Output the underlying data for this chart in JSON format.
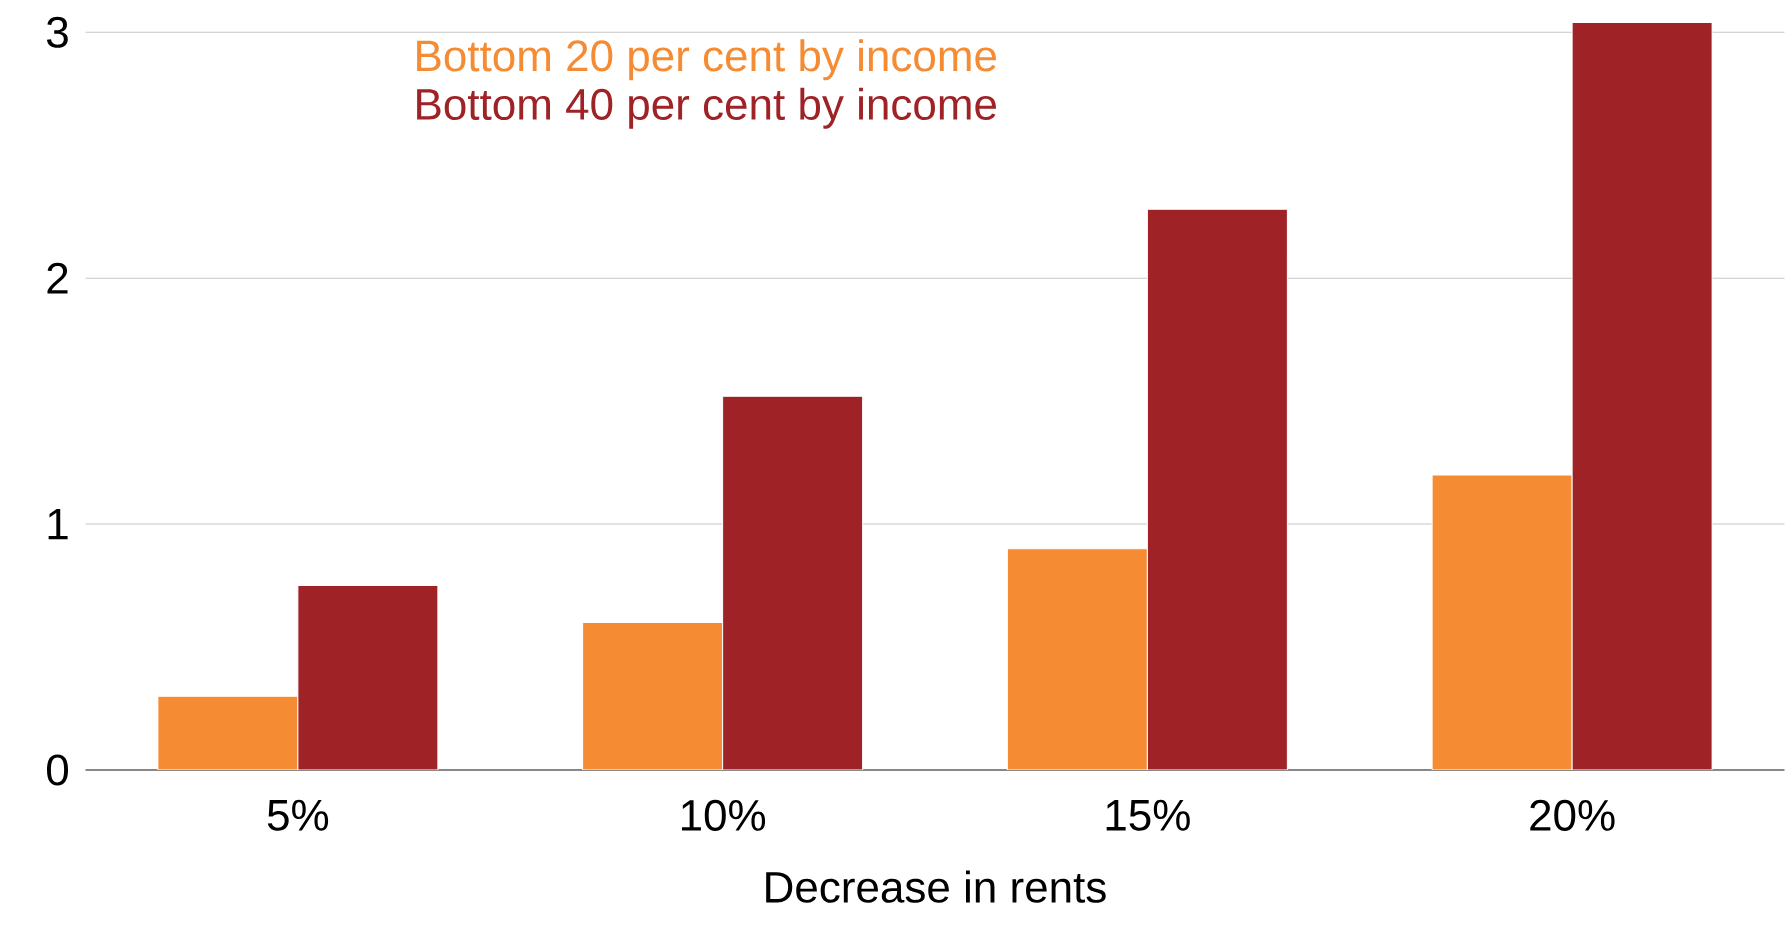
{
  "chart_data": {
    "type": "bar",
    "xlabel": "Decrease in rents",
    "categories": [
      "5%",
      "10%",
      "15%",
      "20%"
    ],
    "series": [
      {
        "name": "Bottom 20 per cent by income",
        "color": "#f58b33",
        "values": [
          0.3,
          0.6,
          0.9,
          1.2
        ]
      },
      {
        "name": "Bottom 40 per cent by income",
        "color": "#9e2226",
        "values": [
          0.75,
          1.52,
          2.28,
          3.04
        ]
      }
    ],
    "ylim": [
      0,
      3.05
    ],
    "yticks": [
      0,
      1,
      2,
      3
    ],
    "grid": "y",
    "legend": "top left"
  }
}
